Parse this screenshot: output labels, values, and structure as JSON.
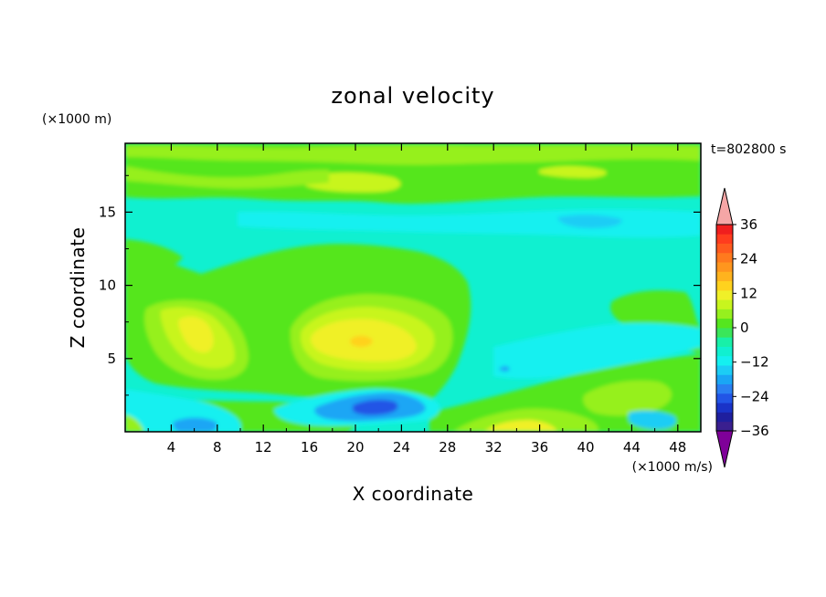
{
  "chart_data": {
    "type": "heatmap",
    "title": "zonal velocity",
    "xlabel": "X coordinate",
    "ylabel": "Z coordinate",
    "x_unit": "(×1000 m/s)",
    "y_unit": "(×1000 m)",
    "time_label": "t=802800 s",
    "xlim": [
      0,
      50
    ],
    "ylim": [
      0,
      19.7
    ],
    "x_ticks": [
      4,
      8,
      12,
      16,
      20,
      24,
      28,
      32,
      36,
      40,
      44,
      48
    ],
    "y_ticks": [
      5,
      10,
      15
    ],
    "colorbar": {
      "levels": [
        -39,
        -36,
        -33,
        -30,
        -27,
        -24,
        -21,
        -18,
        -15,
        -12,
        -9,
        -6,
        -3,
        0,
        3,
        6,
        9,
        12,
        15,
        18,
        21,
        24,
        27,
        30,
        33,
        36,
        39
      ],
      "tick_labels": [
        "36",
        "24",
        "12",
        "0",
        "−12",
        "−24",
        "−36"
      ],
      "tick_values": [
        36,
        24,
        12,
        0,
        -12,
        -24,
        -36
      ],
      "colors": [
        "#7f0099",
        "#3a1f8f",
        "#1f1f9e",
        "#1a33c8",
        "#2255e6",
        "#2a7ff2",
        "#1aa6f5",
        "#1ccdf5",
        "#14f0f0",
        "#10f0d0",
        "#18f0a8",
        "#3ae65a",
        "#55e61e",
        "#96f01e",
        "#c8f51e",
        "#f0f028",
        "#ffd21e",
        "#ffb31e",
        "#ff961e",
        "#ff7a1e",
        "#ff5a1e",
        "#ff3c1e",
        "#f01e1e",
        "#f5a6a6"
      ]
    },
    "features": [
      {
        "x": 6.5,
        "z": 6.5,
        "value": 12
      },
      {
        "x": 21,
        "z": 6.3,
        "value": 15
      },
      {
        "x": 22,
        "z": 1.6,
        "value": -24
      },
      {
        "x": 34.5,
        "z": 0.5,
        "value": 15
      },
      {
        "x": 20.5,
        "z": 17.3,
        "value": 6
      },
      {
        "x": 38,
        "z": 14.5,
        "value": -12
      },
      {
        "x": 36,
        "z": 4.3,
        "value": -18
      }
    ]
  }
}
